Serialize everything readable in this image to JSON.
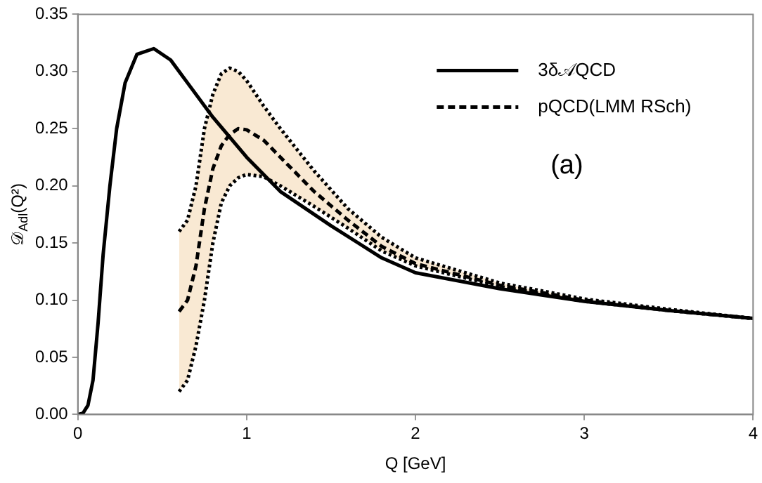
{
  "chart_data": {
    "type": "line",
    "xlabel": "Q [GeV]",
    "ylabel": "𝒟$_{Adl}$(Q²)",
    "annotations": [
      "(a)"
    ],
    "xlim": [
      0,
      4
    ],
    "xticks": [
      0,
      1,
      2,
      3,
      4
    ],
    "ylim": [
      0,
      0.35
    ],
    "yticks": [
      {
        "value": 0,
        "label": "0.00"
      },
      {
        "value": 0.05,
        "label": "0.05"
      },
      {
        "value": 0.1,
        "label": "0.10"
      },
      {
        "value": 0.15,
        "label": "0.15"
      },
      {
        "value": 0.2,
        "label": "0.20"
      },
      {
        "value": 0.25,
        "label": "0.25"
      },
      {
        "value": 0.3,
        "label": "0.30"
      },
      {
        "value": 0.35,
        "label": "0.35"
      }
    ],
    "grid": false,
    "legend": "top right",
    "series": [
      {
        "name": "3δ𝒜QCD",
        "color": "#000000",
        "line_style": "solid",
        "x": [
          0,
          0.03,
          0.06,
          0.09,
          0.12,
          0.15,
          0.19,
          0.23,
          0.28,
          0.35,
          0.45,
          0.55,
          0.65,
          0.8,
          1.0,
          1.2,
          1.5,
          1.8,
          2.0,
          2.5,
          3,
          3.5,
          4
        ],
        "values": [
          0,
          0.001,
          0.008,
          0.03,
          0.08,
          0.14,
          0.2,
          0.25,
          0.29,
          0.315,
          0.32,
          0.31,
          0.29,
          0.26,
          0.225,
          0.195,
          0.165,
          0.137,
          0.124,
          0.11,
          0.099,
          0.091,
          0.084
        ]
      },
      {
        "name": "pQCD(LMM RSch)",
        "color": "#000000",
        "line_style": "dashed",
        "x": [
          0.6,
          0.65,
          0.7,
          0.75,
          0.8,
          0.85,
          0.9,
          0.95,
          1.0,
          1.1,
          1.2,
          1.4,
          1.6,
          1.8,
          2.0,
          2.5,
          3,
          3.5,
          4
        ],
        "values": [
          0.09,
          0.1,
          0.13,
          0.18,
          0.215,
          0.235,
          0.245,
          0.25,
          0.249,
          0.24,
          0.225,
          0.195,
          0.17,
          0.147,
          0.132,
          0.113,
          0.1,
          0.091,
          0.084
        ],
        "upper": [
          0.16,
          0.17,
          0.2,
          0.25,
          0.28,
          0.298,
          0.303,
          0.3,
          0.292,
          0.27,
          0.25,
          0.213,
          0.18,
          0.155,
          0.137,
          0.115,
          0.101,
          0.092,
          0.084
        ],
        "lower": [
          0.02,
          0.03,
          0.06,
          0.1,
          0.15,
          0.185,
          0.2,
          0.207,
          0.21,
          0.208,
          0.2,
          0.182,
          0.163,
          0.143,
          0.13,
          0.112,
          0.099,
          0.091,
          0.084
        ]
      },
      {
        "color": "#000000",
        "line_style": "dotted",
        "x": [
          0.6,
          0.65,
          0.7,
          0.75,
          0.8,
          0.85,
          0.9,
          0.95,
          1.0,
          1.1,
          1.2,
          1.4,
          1.6,
          1.8,
          2.0,
          2.5,
          3,
          3.5,
          4
        ],
        "values": [
          0.16,
          0.17,
          0.2,
          0.25,
          0.28,
          0.298,
          0.303,
          0.3,
          0.292,
          0.27,
          0.25,
          0.213,
          0.18,
          0.155,
          0.137,
          0.115,
          0.101,
          0.092,
          0.084
        ]
      },
      {
        "color": "#000000",
        "line_style": "dotted",
        "x": [
          0.6,
          0.65,
          0.7,
          0.75,
          0.8,
          0.85,
          0.9,
          0.95,
          1.0,
          1.1,
          1.2,
          1.4,
          1.6,
          1.8,
          2.0,
          2.5,
          3,
          3.5,
          4
        ],
        "values": [
          0.02,
          0.03,
          0.06,
          0.1,
          0.15,
          0.185,
          0.2,
          0.207,
          0.21,
          0.208,
          0.2,
          0.182,
          0.163,
          0.143,
          0.13,
          0.112,
          0.099,
          0.091,
          0.084
        ]
      }
    ]
  }
}
